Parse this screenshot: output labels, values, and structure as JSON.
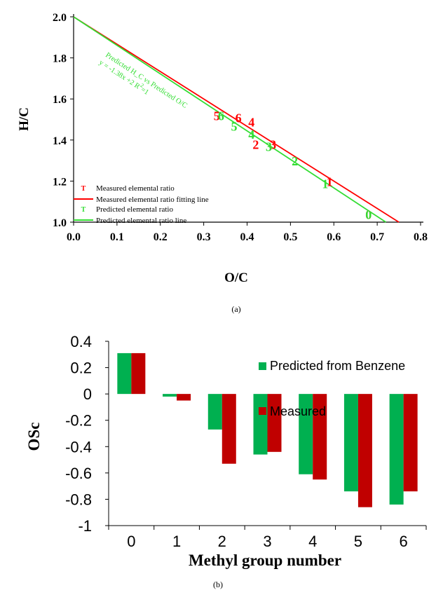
{
  "chart_data": [
    {
      "type": "scatter",
      "panel_label": "(a)",
      "xlabel": "O/C",
      "ylabel": "H/C",
      "xlim": [
        0,
        0.8
      ],
      "ylim": [
        1.0,
        2.0
      ],
      "xticks": [
        "0.0",
        "0.1",
        "0.2",
        "0.3",
        "0.4",
        "0.5",
        "0.6",
        "0.7",
        "0.8"
      ],
      "yticks": [
        "1.0",
        "1.2",
        "1.4",
        "1.6",
        "1.8",
        "2.0"
      ],
      "grid": false,
      "legend_position": "bottom-left",
      "series": [
        {
          "name": "Measured elemental ratio",
          "kind": "label-points",
          "marker": "T",
          "color": "#ff0000",
          "points": [
            {
              "label": "0",
              "x": 0.68,
              "y": 1.04
            },
            {
              "label": "1",
              "x": 0.59,
              "y": 1.2
            },
            {
              "label": "2",
              "x": 0.42,
              "y": 1.38
            },
            {
              "label": "3",
              "x": 0.46,
              "y": 1.38
            },
            {
              "label": "4",
              "x": 0.41,
              "y": 1.49
            },
            {
              "label": "5",
              "x": 0.33,
              "y": 1.52
            },
            {
              "label": "6",
              "x": 0.38,
              "y": 1.51
            }
          ]
        },
        {
          "name": "Measured elemental ratio fitting line",
          "kind": "line",
          "color": "#ff0000",
          "x": [
            0.0,
            0.75
          ],
          "y": [
            2.0,
            1.0
          ]
        },
        {
          "name": "Predicted elemental ratio",
          "kind": "label-points",
          "marker": "T",
          "color": "#33dd33",
          "points": [
            {
              "label": "0",
              "x": 0.68,
              "y": 1.04
            },
            {
              "label": "1",
              "x": 0.58,
              "y": 1.19
            },
            {
              "label": "2",
              "x": 0.51,
              "y": 1.3
            },
            {
              "label": "3",
              "x": 0.45,
              "y": 1.37
            },
            {
              "label": "4",
              "x": 0.41,
              "y": 1.43
            },
            {
              "label": "5",
              "x": 0.37,
              "y": 1.47
            },
            {
              "label": "6",
              "x": 0.34,
              "y": 1.52
            }
          ]
        },
        {
          "name": "Predicted elemental ratio line",
          "kind": "line",
          "color": "#33dd33",
          "x": [
            0.0,
            0.72
          ],
          "y": [
            2.0,
            1.0
          ]
        }
      ],
      "annotations": [
        "Predicted H_C vs Predicted O/C",
        "y = -1.38x +2 R",
        "2",
        "=1"
      ]
    },
    {
      "type": "bar",
      "panel_label": "(b)",
      "xlabel": "Methyl group number",
      "ylabel": "OSc",
      "categories": [
        "0",
        "1",
        "2",
        "3",
        "4",
        "5",
        "6"
      ],
      "ylim": [
        -1,
        0.4
      ],
      "yticks": [
        "0.4",
        "0.2",
        "0",
        "-0.2",
        "-0.4",
        "-0.6",
        "-0.8",
        "-1"
      ],
      "grid": false,
      "legend_position": "top-right",
      "series": [
        {
          "name": "Predicted from Benzene",
          "color": "#00b050",
          "values": [
            0.31,
            -0.02,
            -0.27,
            -0.46,
            -0.61,
            -0.74,
            -0.84
          ]
        },
        {
          "name": "Measured",
          "color": "#c00000",
          "values": [
            0.31,
            -0.05,
            -0.53,
            -0.44,
            -0.65,
            -0.86,
            -0.74
          ]
        }
      ]
    }
  ]
}
